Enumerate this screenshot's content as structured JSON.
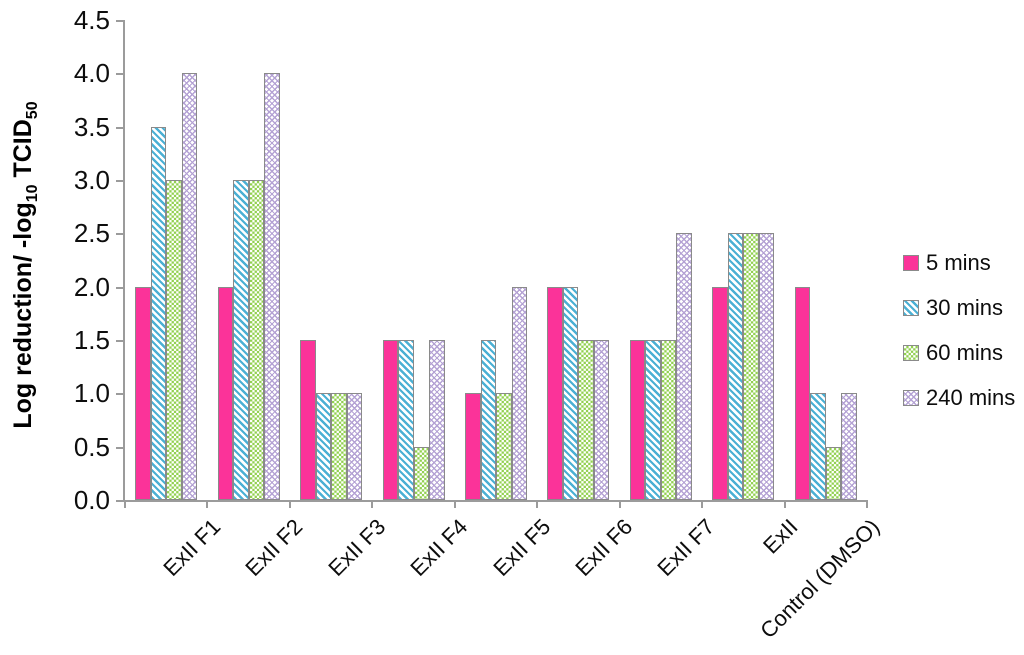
{
  "chart_data": {
    "type": "bar",
    "title": "",
    "xlabel": "",
    "ylabel": "Log reduction/ -log10 TCID50",
    "ylabel_parts": [
      "Log reduction/ -log",
      "10",
      " TCID",
      "50"
    ],
    "categories": [
      "ExII F1",
      "ExII F2",
      "ExII F3",
      "ExII F4",
      "ExII F5",
      "ExII F6",
      "ExII F7",
      "ExII",
      "Control (DMSO)"
    ],
    "series": [
      {
        "name": "5 mins",
        "pattern": "solid",
        "color": "#fb3399",
        "values": [
          2.0,
          2.0,
          1.5,
          1.5,
          1.0,
          2.0,
          1.5,
          2.0,
          2.0
        ]
      },
      {
        "name": "30 mins",
        "pattern": "diagonal-stripes",
        "color": "#4bb0d4",
        "values": [
          3.5,
          3.0,
          1.0,
          1.5,
          1.5,
          2.0,
          1.5,
          2.5,
          1.0
        ]
      },
      {
        "name": "60 mins",
        "pattern": "checkerboard",
        "color": "#92d050",
        "values": [
          3.0,
          3.0,
          1.0,
          0.5,
          1.0,
          1.5,
          1.5,
          2.5,
          0.5
        ]
      },
      {
        "name": "240 mins",
        "pattern": "diamond-lattice",
        "color": "#b4a2d4",
        "values": [
          4.0,
          4.0,
          1.0,
          1.5,
          2.0,
          1.5,
          2.5,
          2.5,
          1.0
        ]
      }
    ],
    "ylim": [
      0,
      4.5
    ],
    "ytick_step": 0.5,
    "ytick_labels": [
      "0.0",
      "0.5",
      "1.0",
      "1.5",
      "2.0",
      "2.5",
      "3.0",
      "3.5",
      "4.0",
      "4.5"
    ],
    "grid": false,
    "legend_position": "right",
    "axis_color": "#9b9b9b",
    "bar_border_color": "#8a8a8a",
    "background_color": "#ffffff"
  }
}
